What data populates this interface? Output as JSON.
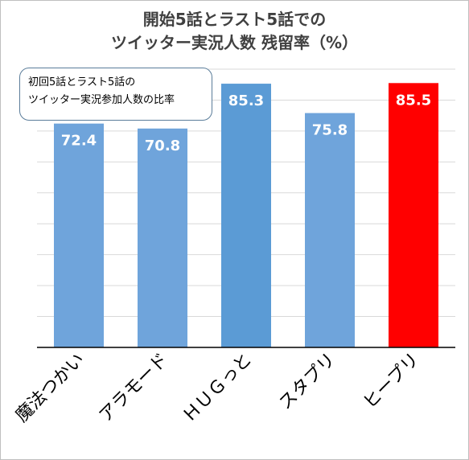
{
  "chart_data": {
    "type": "bar",
    "title_lines": [
      "開始5話とラスト5話での",
      "ツイッター実況人数  残留率（%）"
    ],
    "note_lines": [
      "初回5話とラスト5話の",
      "ツイッター実況参加人数の比率"
    ],
    "categories": [
      "魔法つかい",
      "アラモード",
      "ＨＵＧっと",
      "スタプリ",
      "ヒープリ"
    ],
    "values": [
      72.4,
      70.8,
      85.3,
      75.8,
      85.5
    ],
    "value_labels": [
      "72.4",
      "70.8",
      "85.3",
      "75.8",
      "85.5"
    ],
    "colors": [
      "#6fa4db",
      "#6fa4db",
      "#5b9bd5",
      "#6fa4db",
      "#ff0000"
    ],
    "ylim": [
      0,
      90
    ],
    "grid": true,
    "xlabel": "",
    "ylabel": ""
  }
}
